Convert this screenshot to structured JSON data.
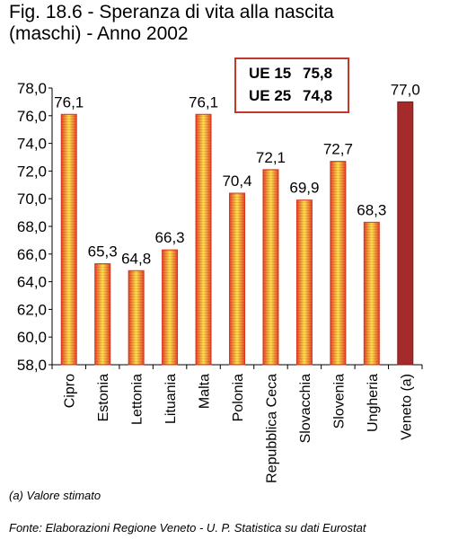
{
  "title": {
    "line1": "Fig. 18.6 - Speranza di vita alla nascita",
    "line2": "(maschi) - Anno 2002"
  },
  "ue_box": {
    "row1_label": "UE 15",
    "row1_value": "75,8",
    "row2_label": "UE 25",
    "row2_value": "74,8"
  },
  "footnote": "(a) Valore stimato",
  "source": "Fonte: Elaborazioni Regione Veneto - U. P. Statistica su dati Eurostat",
  "colors": {
    "bar_gradient_edge": "#e8452a",
    "bar_gradient_center": "#ffe14a",
    "veneto_bar": "#a52a2a",
    "box_border": "#c0392b"
  },
  "chart_data": {
    "type": "bar",
    "categories": [
      "Cipro",
      "Estonia",
      "Lettonia",
      "Lituania",
      "Malta",
      "Polonia",
      "Repubblica Ceca",
      "Slovacchia",
      "Slovenia",
      "Ungheria",
      "Veneto (a)"
    ],
    "values": [
      76.1,
      65.3,
      64.8,
      66.3,
      76.1,
      70.4,
      72.1,
      69.9,
      72.7,
      68.3,
      77.0
    ],
    "value_labels": [
      "76,1",
      "65,3",
      "64,8",
      "66,3",
      "76,1",
      "70,4",
      "72,1",
      "69,9",
      "72,7",
      "68,3",
      "77,0"
    ],
    "highlight_index": 10,
    "ylim": [
      58.0,
      78.0
    ],
    "yticks": [
      58.0,
      60.0,
      62.0,
      64.0,
      66.0,
      68.0,
      70.0,
      72.0,
      74.0,
      76.0,
      78.0
    ],
    "ytick_labels": [
      "58,0",
      "60,0",
      "62,0",
      "64,0",
      "66,0",
      "68,0",
      "70,0",
      "72,0",
      "74,0",
      "76,0",
      "78,0"
    ],
    "grid": false,
    "legend": "none"
  }
}
